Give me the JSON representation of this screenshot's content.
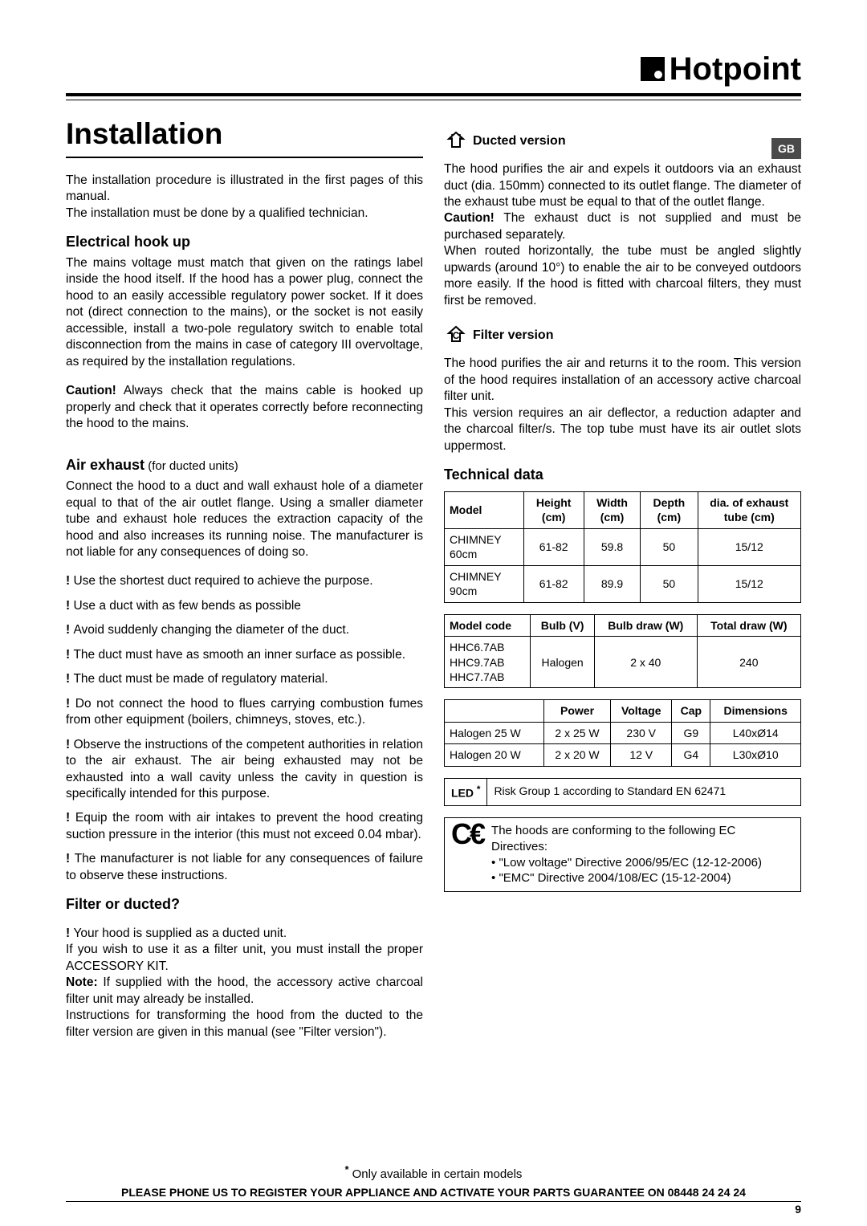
{
  "brand": "Hotpoint",
  "country_badge": "GB",
  "title": "Installation",
  "left": {
    "intro1": "The installation procedure is illustrated in the first pages of this manual.",
    "intro2": "The installation must be done by a qualified technician.",
    "h_elec": "Electrical hook up",
    "elec1": "The mains voltage must match that given on the ratings label inside the hood itself. If the hood has a power plug, connect the hood to an easily accessible regulatory power socket. If it does not (direct connection to the mains), or the socket is not easily accessible, install a two-pole regulatory switch to enable total disconnection from the mains in case of category III overvoltage, as required by the installation regulations.",
    "caution_label": "Caution!",
    "elec_caution": " Always check that the mains cable is hooked up properly and check that it operates correctly before reconnecting the hood to the mains.",
    "h_air": "Air exhaust",
    "air_sub": " (for ducted units)",
    "air1": "Connect the hood to a duct and wall exhaust hole of a diameter equal to that of the air outlet flange. Using a smaller diameter tube and exhaust hole reduces the extraction capacity of the hood and also increases its running noise. The manufacturer is not liable for any consequences of doing so.",
    "w1": "Use the shortest duct required to achieve the purpose.",
    "w2": "Use a duct with as few bends as possible",
    "w3": "Avoid suddenly changing the diameter of the duct.",
    "w4": "The duct must have as smooth an inner surface as possible.",
    "w5": "The duct must be made of regulatory material.",
    "w6": "Do not connect the hood to flues carrying combustion fumes from other equipment (boilers, chimneys, stoves, etc.).",
    "w7": "Observe the instructions of the competent authorities in relation to the air exhaust. The air being exhausted may not be exhausted into a wall cavity unless the cavity in question is specifically intended for this purpose.",
    "w8": "Equip the room with air intakes to prevent the hood creating suction pressure in the interior (this must not exceed 0.04 mbar).",
    "w9": "The manufacturer is not liable for any consequences of failure to observe these instructions.",
    "h_filter": "Filter or ducted?",
    "fw1": "Your hood is supplied as a ducted unit.",
    "f1": "If you wish to use it as a filter unit, you must install the proper ACCESSORY KIT.",
    "note_label": "Note:",
    "f_note": " If supplied with the hood, the accessory active charcoal filter unit may already be installed.",
    "f2": "Instructions for transforming the hood from the ducted to the filter version are given in this manual (see \"Filter version\")."
  },
  "right": {
    "h_ducted": "Ducted version",
    "d1": "The hood purifies the air and expels it outdoors via an exhaust duct (dia. 150mm) connected to its outlet flange. The diameter of the exhaust tube must be equal to that of the outlet flange.",
    "d_caution": " The exhaust duct is not supplied and must be purchased separately.",
    "d2": "When routed horizontally, the tube must be angled slightly upwards (around 10°) to enable the air to be conveyed outdoors more easily. If the hood is fitted with charcoal filters, they must first be removed.",
    "h_filterv": "Filter version",
    "fv1": "The hood purifies the air and returns it to the room. This version of the hood requires installation of an accessory active charcoal filter unit.",
    "fv2": "This version requires an air deflector, a reduction adapter and the charcoal filter/s. The top tube must have its air outlet slots uppermost.",
    "h_tech": "Technical data",
    "table1": {
      "headers": [
        "Model",
        "Height (cm)",
        "Width (cm)",
        "Depth (cm)",
        "dia. of exhaust tube (cm)"
      ],
      "rows": [
        [
          "CHIMNEY 60cm",
          "61-82",
          "59.8",
          "50",
          "15/12"
        ],
        [
          "CHIMNEY 90cm",
          "61-82",
          "89.9",
          "50",
          "15/12"
        ]
      ]
    },
    "table2": {
      "headers": [
        "Model code",
        "Bulb (V)",
        "Bulb draw (W)",
        "Total draw (W)"
      ],
      "rows": [
        [
          "HHC6.7AB\nHHC9.7AB\nHHC7.7AB",
          "Halogen",
          "2 x 40",
          "240"
        ]
      ]
    },
    "table3": {
      "headers": [
        "",
        "Power",
        "Voltage",
        "Cap",
        "Dimensions"
      ],
      "rows": [
        [
          "Halogen 25 W",
          "2 x 25 W",
          "230 V",
          "G9",
          "L40xØ14"
        ],
        [
          "Halogen 20 W",
          "2 x 20 W",
          "12 V",
          "G4",
          "L30xØ10"
        ]
      ]
    },
    "led_label": "LED",
    "led_text": "Risk Group 1 according to Standard EN 62471",
    "ce_intro": "The hoods are conforming to the following EC Directives:",
    "ce_d1": "• \"Low voltage\" Directive 2006/95/EC (12-12-2006)",
    "ce_d2": "• \"EMC\" Directive 2004/108/EC (15-12-2004)"
  },
  "footer_note": " Only available in certain models",
  "footer_reg": "PLEASE PHONE US TO REGISTER YOUR APPLIANCE AND ACTIVATE YOUR PARTS GUARANTEE ON 08448 24 24 24",
  "page_num": "9",
  "colors": {
    "badge_bg": "#4a4a4a",
    "badge_fg": "#ffffff"
  }
}
